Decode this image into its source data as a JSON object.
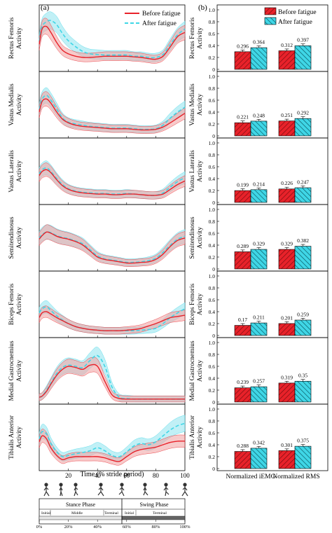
{
  "panel_labels": {
    "a": "(a)",
    "b": "(b)"
  },
  "x_axis_title": "Time (% stride period)",
  "x_ticks": [
    "20",
    "40",
    "60",
    "80",
    "100"
  ],
  "legend_a": {
    "before": "Before fatigue",
    "after": "After fatigue"
  },
  "legend_b": {
    "before": "Before fatigue",
    "after": "After fatigue"
  },
  "bar_categories": [
    "Normalized iEMG",
    "Normalized RMS"
  ],
  "y_ticks": [
    "0",
    "0.2",
    "0.4",
    "0.6",
    "0.8",
    "1.0"
  ],
  "colors": {
    "before": "#e8222a",
    "after": "#3fd6e6",
    "before_band": "#f2a7a7",
    "after_band": "#a6eaf2"
  },
  "phase_bar": {
    "stance_label": "Stance Phase",
    "swing_label": "Swing Phase",
    "subphases": [
      "Initial",
      "Middle",
      "Terminal",
      "Initial",
      "Terminal"
    ],
    "percent_labels": [
      "0%",
      "20%",
      "40%",
      "60%",
      "80%",
      "100%"
    ]
  },
  "chart_data": [
    {
      "type": "line",
      "muscle": "Rectus Femoris",
      "ylabel": "Rectus Femoris Activity",
      "x": [
        0,
        2,
        5,
        8,
        12,
        16,
        20,
        25,
        30,
        35,
        40,
        45,
        50,
        55,
        60,
        65,
        70,
        75,
        80,
        85,
        90,
        95,
        100
      ],
      "series": [
        {
          "name": "Before fatigue",
          "values": [
            0.42,
            0.68,
            0.72,
            0.62,
            0.45,
            0.32,
            0.26,
            0.22,
            0.2,
            0.2,
            0.21,
            0.22,
            0.22,
            0.22,
            0.22,
            0.21,
            0.2,
            0.18,
            0.17,
            0.22,
            0.38,
            0.55,
            0.62
          ]
        },
        {
          "name": "After fatigue",
          "values": [
            0.48,
            0.72,
            0.8,
            0.82,
            0.75,
            0.6,
            0.48,
            0.38,
            0.3,
            0.26,
            0.25,
            0.24,
            0.24,
            0.24,
            0.24,
            0.22,
            0.22,
            0.2,
            0.2,
            0.25,
            0.42,
            0.58,
            0.68
          ]
        }
      ]
    },
    {
      "type": "line",
      "muscle": "Vastus Medialis",
      "ylabel": "Vastus Medialis Activity",
      "x": [
        0,
        2,
        5,
        8,
        12,
        16,
        20,
        25,
        30,
        35,
        40,
        45,
        50,
        55,
        60,
        65,
        70,
        75,
        80,
        85,
        90,
        95,
        100
      ],
      "series": [
        {
          "name": "Before fatigue",
          "values": [
            0.4,
            0.58,
            0.62,
            0.55,
            0.4,
            0.28,
            0.22,
            0.18,
            0.16,
            0.15,
            0.14,
            0.13,
            0.12,
            0.12,
            0.12,
            0.11,
            0.1,
            0.1,
            0.11,
            0.15,
            0.22,
            0.3,
            0.38
          ]
        },
        {
          "name": "After fatigue",
          "values": [
            0.45,
            0.62,
            0.68,
            0.6,
            0.45,
            0.3,
            0.23,
            0.2,
            0.18,
            0.16,
            0.15,
            0.14,
            0.13,
            0.13,
            0.13,
            0.12,
            0.11,
            0.11,
            0.12,
            0.18,
            0.3,
            0.4,
            0.48
          ]
        }
      ]
    },
    {
      "type": "line",
      "muscle": "Vastus Lateralis",
      "ylabel": "Vastus Lateralis Activity",
      "x": [
        0,
        2,
        5,
        8,
        12,
        16,
        20,
        25,
        30,
        35,
        40,
        45,
        50,
        55,
        60,
        65,
        70,
        75,
        80,
        85,
        90,
        95,
        100
      ],
      "series": [
        {
          "name": "Before fatigue",
          "values": [
            0.45,
            0.52,
            0.55,
            0.5,
            0.38,
            0.28,
            0.22,
            0.18,
            0.16,
            0.15,
            0.14,
            0.14,
            0.13,
            0.13,
            0.14,
            0.14,
            0.13,
            0.12,
            0.12,
            0.14,
            0.22,
            0.3,
            0.36
          ]
        },
        {
          "name": "After fatigue",
          "values": [
            0.48,
            0.55,
            0.58,
            0.52,
            0.4,
            0.3,
            0.23,
            0.19,
            0.17,
            0.16,
            0.15,
            0.15,
            0.14,
            0.14,
            0.15,
            0.14,
            0.13,
            0.12,
            0.12,
            0.16,
            0.26,
            0.35,
            0.42
          ]
        }
      ]
    },
    {
      "type": "line",
      "muscle": "Semitendinosus",
      "ylabel": "Semitendinosus Activity",
      "x": [
        0,
        2,
        5,
        8,
        12,
        16,
        20,
        25,
        30,
        35,
        40,
        45,
        50,
        55,
        60,
        65,
        70,
        75,
        80,
        85,
        90,
        95,
        100
      ],
      "series": [
        {
          "name": "Before fatigue",
          "values": [
            0.5,
            0.56,
            0.62,
            0.6,
            0.55,
            0.52,
            0.5,
            0.46,
            0.4,
            0.3,
            0.2,
            0.16,
            0.14,
            0.12,
            0.1,
            0.1,
            0.11,
            0.12,
            0.16,
            0.25,
            0.38,
            0.48,
            0.52
          ]
        },
        {
          "name": "After fatigue",
          "values": [
            0.52,
            0.58,
            0.62,
            0.61,
            0.56,
            0.53,
            0.51,
            0.47,
            0.42,
            0.32,
            0.22,
            0.17,
            0.15,
            0.13,
            0.11,
            0.11,
            0.12,
            0.14,
            0.18,
            0.28,
            0.4,
            0.5,
            0.55
          ]
        }
      ]
    },
    {
      "type": "line",
      "muscle": "Biceps Femoris",
      "ylabel": "Biceps Femoris Activity",
      "x": [
        0,
        2,
        5,
        8,
        12,
        16,
        20,
        25,
        30,
        35,
        40,
        45,
        50,
        55,
        60,
        65,
        70,
        75,
        80,
        85,
        90,
        95,
        100
      ],
      "series": [
        {
          "name": "Before fatigue",
          "values": [
            0.3,
            0.38,
            0.4,
            0.36,
            0.3,
            0.25,
            0.2,
            0.15,
            0.12,
            0.1,
            0.09,
            0.08,
            0.08,
            0.08,
            0.09,
            0.1,
            0.12,
            0.16,
            0.2,
            0.25,
            0.3,
            0.32,
            0.34
          ]
        },
        {
          "name": "After fatigue",
          "values": [
            0.38,
            0.45,
            0.48,
            0.42,
            0.33,
            0.26,
            0.2,
            0.15,
            0.12,
            0.1,
            0.09,
            0.08,
            0.08,
            0.08,
            0.08,
            0.08,
            0.09,
            0.1,
            0.12,
            0.2,
            0.3,
            0.38,
            0.45
          ]
        }
      ]
    },
    {
      "type": "line",
      "muscle": "Medial Gastrocnemius",
      "ylabel": "Medial Gastrocnemius Activity",
      "x": [
        0,
        2,
        5,
        8,
        12,
        16,
        20,
        25,
        30,
        35,
        40,
        45,
        50,
        55,
        60,
        65,
        70,
        75,
        80,
        85,
        90,
        95,
        100
      ],
      "series": [
        {
          "name": "Before fatigue",
          "values": [
            0.08,
            0.1,
            0.18,
            0.3,
            0.45,
            0.55,
            0.6,
            0.58,
            0.55,
            0.62,
            0.6,
            0.35,
            0.12,
            0.06,
            0.05,
            0.05,
            0.05,
            0.05,
            0.05,
            0.05,
            0.05,
            0.05,
            0.05
          ]
        },
        {
          "name": "After fatigue",
          "values": [
            0.08,
            0.1,
            0.2,
            0.32,
            0.48,
            0.58,
            0.62,
            0.6,
            0.58,
            0.7,
            0.78,
            0.6,
            0.25,
            0.08,
            0.06,
            0.05,
            0.05,
            0.05,
            0.05,
            0.05,
            0.05,
            0.05,
            0.05
          ]
        }
      ]
    },
    {
      "type": "line",
      "muscle": "Tibialis Anterior",
      "ylabel": "Tibialis Anterior Activity",
      "x": [
        0,
        2,
        5,
        8,
        12,
        16,
        20,
        25,
        30,
        35,
        40,
        45,
        50,
        55,
        60,
        65,
        70,
        75,
        80,
        85,
        90,
        95,
        100
      ],
      "series": [
        {
          "name": "Before fatigue",
          "values": [
            0.45,
            0.55,
            0.5,
            0.35,
            0.22,
            0.15,
            0.18,
            0.2,
            0.2,
            0.2,
            0.2,
            0.18,
            0.14,
            0.12,
            0.2,
            0.28,
            0.32,
            0.34,
            0.36,
            0.4,
            0.44,
            0.46,
            0.46
          ]
        },
        {
          "name": "After fatigue",
          "values": [
            0.5,
            0.62,
            0.58,
            0.42,
            0.28,
            0.2,
            0.22,
            0.25,
            0.27,
            0.3,
            0.35,
            0.3,
            0.22,
            0.2,
            0.28,
            0.38,
            0.42,
            0.4,
            0.45,
            0.55,
            0.65,
            0.72,
            0.76
          ]
        }
      ]
    },
    {
      "type": "bar",
      "muscle": "Rectus Femoris",
      "ylabel": "Rectus Femoris Activity",
      "ylim": [
        0,
        1.0
      ],
      "categories": [
        "Normalized iEMG",
        "Normalized RMS"
      ],
      "series": [
        {
          "name": "Before fatigue",
          "values": [
            0.296,
            0.312
          ]
        },
        {
          "name": "After fatigue",
          "values": [
            0.364,
            0.397
          ]
        }
      ],
      "labels": [
        [
          "0.296",
          "0.312"
        ],
        [
          "0.364",
          "0.397"
        ]
      ]
    },
    {
      "type": "bar",
      "muscle": "Vastus Medialis",
      "ylabel": "Vastus Medialis Activity",
      "ylim": [
        0,
        1.0
      ],
      "categories": [
        "Normalized iEMG",
        "Normalized RMS"
      ],
      "series": [
        {
          "name": "Before fatigue",
          "values": [
            0.221,
            0.251
          ]
        },
        {
          "name": "After fatigue",
          "values": [
            0.248,
            0.292
          ]
        }
      ],
      "labels": [
        [
          "0.221",
          "0.251"
        ],
        [
          "0.248",
          "0.292"
        ]
      ]
    },
    {
      "type": "bar",
      "muscle": "Vastus Lateralis",
      "ylabel": "Vastus Lateralis Activity",
      "ylim": [
        0,
        1.0
      ],
      "categories": [
        "Normalized iEMG",
        "Normalized RMS"
      ],
      "series": [
        {
          "name": "Before fatigue",
          "values": [
            0.199,
            0.226
          ]
        },
        {
          "name": "After fatigue",
          "values": [
            0.214,
            0.247
          ]
        }
      ],
      "labels": [
        [
          "0.199",
          "0.226"
        ],
        [
          "0.214",
          "0.247"
        ]
      ]
    },
    {
      "type": "bar",
      "muscle": "Semitendinosus",
      "ylabel": "Semitendinosus Activity",
      "ylim": [
        0,
        1.0
      ],
      "categories": [
        "Normalized iEMG",
        "Normalized RMS"
      ],
      "series": [
        {
          "name": "Before fatigue",
          "values": [
            0.289,
            0.329
          ]
        },
        {
          "name": "After fatigue",
          "values": [
            0.329,
            0.382
          ]
        }
      ],
      "labels": [
        [
          "0.289",
          "0.329"
        ],
        [
          "0.329",
          "0.382"
        ]
      ]
    },
    {
      "type": "bar",
      "muscle": "Biceps Femoris",
      "ylabel": "Biceps Femoris Activity",
      "ylim": [
        0,
        1.0
      ],
      "categories": [
        "Normalized iEMG",
        "Normalized RMS"
      ],
      "series": [
        {
          "name": "Before fatigue",
          "values": [
            0.17,
            0.201
          ]
        },
        {
          "name": "After fatigue",
          "values": [
            0.211,
            0.259
          ]
        }
      ],
      "labels": [
        [
          "0.17",
          "0.201"
        ],
        [
          "0.211",
          "0.259"
        ]
      ]
    },
    {
      "type": "bar",
      "muscle": "Medial Gastrocnemius",
      "ylabel": "Medial Gastrocnemius Activity",
      "ylim": [
        0,
        1.0
      ],
      "categories": [
        "Normalized iEMG",
        "Normalized RMS"
      ],
      "series": [
        {
          "name": "Before fatigue",
          "values": [
            0.239,
            0.319
          ]
        },
        {
          "name": "After fatigue",
          "values": [
            0.257,
            0.35
          ]
        }
      ],
      "labels": [
        [
          "0.239",
          "0.319"
        ],
        [
          "0.257",
          "0.35"
        ]
      ]
    },
    {
      "type": "bar",
      "muscle": "Tibialis Anterior",
      "ylabel": "Tibialis Anterior Activity",
      "ylim": [
        0,
        1.0
      ],
      "categories": [
        "Normalized iEMG",
        "Normalized RMS"
      ],
      "series": [
        {
          "name": "Before fatigue",
          "values": [
            0.288,
            0.301
          ]
        },
        {
          "name": "After fatigue",
          "values": [
            0.342,
            0.375
          ]
        }
      ],
      "labels": [
        [
          "0.288",
          "0.301"
        ],
        [
          "0.342",
          "0.375"
        ]
      ]
    }
  ]
}
